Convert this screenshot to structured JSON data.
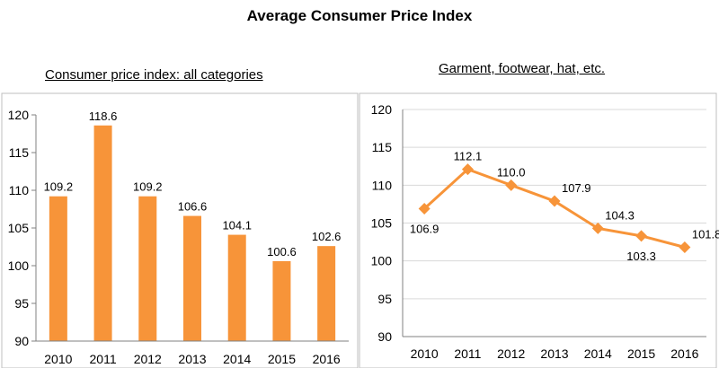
{
  "title": "Average Consumer Price Index",
  "chart_data": [
    {
      "type": "bar",
      "title": "Consumer price index: all categories",
      "categories": [
        "2010",
        "2011",
        "2012",
        "2013",
        "2014",
        "2015",
        "2016"
      ],
      "values": [
        109.2,
        118.6,
        109.2,
        106.6,
        104.1,
        100.6,
        102.6
      ],
      "value_labels": [
        "109.2",
        "118.6",
        "109.2",
        "106.6",
        "104.1",
        "100.6",
        "102.6"
      ],
      "ylim": [
        90,
        120
      ],
      "yticks": [
        90,
        95,
        100,
        105,
        110,
        115,
        120
      ],
      "grid": false,
      "legend": "none",
      "color": "#F79439",
      "xlabel": "",
      "ylabel": ""
    },
    {
      "type": "line",
      "title": "Garment, footwear, hat, etc.",
      "categories": [
        "2010",
        "2011",
        "2012",
        "2013",
        "2014",
        "2015",
        "2016"
      ],
      "values": [
        106.9,
        112.1,
        110.0,
        107.9,
        104.3,
        103.3,
        101.8
      ],
      "value_labels": [
        "106.9",
        "112.1",
        "110.0",
        "107.9",
        "104.3",
        "103.3",
        "101.8"
      ],
      "ylim": [
        90,
        120
      ],
      "yticks": [
        90,
        95,
        100,
        105,
        110,
        115,
        120
      ],
      "grid": true,
      "legend": "none",
      "marker": "diamond",
      "color": "#F79439",
      "xlabel": "",
      "ylabel": ""
    }
  ]
}
